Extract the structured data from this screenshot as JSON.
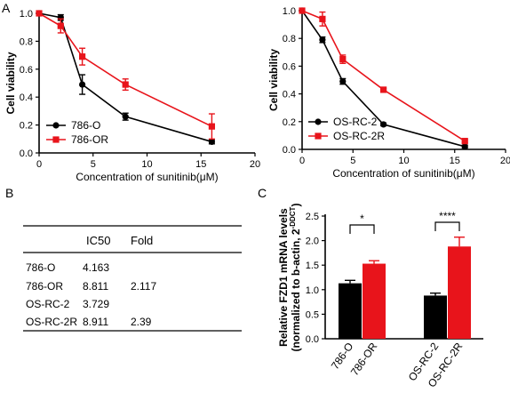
{
  "panels": {
    "a": "A",
    "b": "B",
    "c": "C"
  },
  "colors": {
    "black": "#000000",
    "red": "#e8141b"
  },
  "chart_data": [
    {
      "id": "chart1",
      "type": "line",
      "xlabel": "Concentration of sunitinib(μM)",
      "ylabel": "Cell viability",
      "xlim": [
        0,
        20
      ],
      "ylim": [
        0,
        1.0
      ],
      "xticks": [
        0,
        5,
        10,
        15,
        20
      ],
      "yticks": [
        0,
        0.2,
        0.4,
        0.6,
        0.8,
        1.0
      ],
      "ytick_labels": [
        "0.0",
        "0.2",
        "0.4",
        "0.6",
        "0.8",
        "1.0"
      ],
      "legend_position": "bottom-left",
      "series": [
        {
          "name": "786-O",
          "color": "#000000",
          "marker": "circle",
          "x": [
            0,
            2,
            4,
            8,
            16
          ],
          "y": [
            1.0,
            0.97,
            0.49,
            0.26,
            0.08
          ],
          "err": [
            0,
            0.02,
            0.07,
            0.025,
            0.015
          ]
        },
        {
          "name": "786-OR",
          "color": "#e8141b",
          "marker": "square",
          "x": [
            0,
            2,
            4,
            8,
            16
          ],
          "y": [
            1.0,
            0.91,
            0.69,
            0.49,
            0.19
          ],
          "err": [
            0,
            0.05,
            0.06,
            0.04,
            0.09
          ]
        }
      ]
    },
    {
      "id": "chart2",
      "type": "line",
      "xlabel": "Concentration of sunitinib(μM)",
      "ylabel": "Cell viability",
      "xlim": [
        0,
        20
      ],
      "ylim": [
        0,
        1.0
      ],
      "xticks": [
        0,
        5,
        10,
        15,
        20
      ],
      "yticks": [
        0,
        0.2,
        0.4,
        0.6,
        0.8,
        1.0
      ],
      "ytick_labels": [
        "0.0",
        "0.2",
        "0.4",
        "0.6",
        "0.8",
        "1.0"
      ],
      "legend_position": "bottom-left",
      "series": [
        {
          "name": "OS-RC-2",
          "color": "#000000",
          "marker": "circle",
          "x": [
            0,
            2,
            4,
            8,
            16
          ],
          "y": [
            1.0,
            0.79,
            0.49,
            0.18,
            0.02
          ],
          "err": [
            0,
            0.02,
            0.02,
            0.01,
            0.01
          ]
        },
        {
          "name": "OS-RC-2R",
          "color": "#e8141b",
          "marker": "square",
          "x": [
            0,
            2,
            4,
            8,
            16
          ],
          "y": [
            1.0,
            0.94,
            0.65,
            0.43,
            0.06
          ],
          "err": [
            0,
            0.05,
            0.03,
            0.01,
            0.01
          ]
        }
      ]
    },
    {
      "id": "chart3",
      "type": "bar",
      "ylabel_line1": "Relative FZD1 mRNA levels",
      "ylabel_line2_base": "(normalized to b-actin, 2",
      "ylabel_line2_sup": "-DDCT",
      "ylabel_line2_end": ")",
      "ylim": [
        0.0,
        2.5
      ],
      "yticks": [
        0,
        0.5,
        1.0,
        1.5,
        2.0,
        2.5
      ],
      "ytick_labels": [
        "0.0",
        "0.5",
        "1.0",
        "1.5",
        "2.0",
        "2.5"
      ],
      "categories": [
        "786-O",
        "786-OR",
        "OS-RC-2",
        "OS-RC-2R"
      ],
      "values": [
        1.13,
        1.53,
        0.88,
        1.88
      ],
      "errors": [
        0.06,
        0.06,
        0.05,
        0.19
      ],
      "bar_colors": [
        "#000000",
        "#e8141b",
        "#000000",
        "#e8141b"
      ],
      "significance": [
        {
          "between": [
            0,
            1
          ],
          "label": "*"
        },
        {
          "between": [
            2,
            3
          ],
          "label": "****"
        }
      ]
    }
  ],
  "table": {
    "headers": [
      "",
      "IC50",
      "Fold"
    ],
    "rows": [
      [
        "786-O",
        "4.163",
        ""
      ],
      [
        "786-OR",
        "8.811",
        "2.117"
      ],
      [
        "OS-RC-2",
        "3.729",
        ""
      ],
      [
        "OS-RC-2R",
        "8.911",
        "2.39"
      ]
    ]
  }
}
